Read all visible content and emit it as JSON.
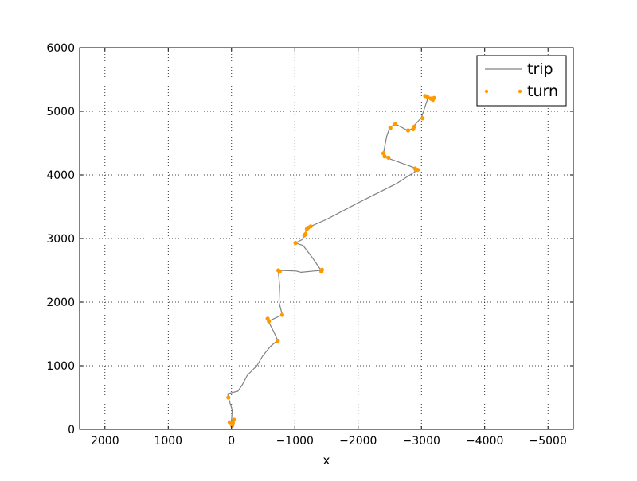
{
  "chart_data": {
    "type": "line",
    "xlabel": "x",
    "ylabel": "",
    "title": "",
    "xlim": [
      2400,
      -5400
    ],
    "ylim": [
      0,
      6000
    ],
    "xticks": [
      2000,
      1000,
      0,
      -1000,
      -2000,
      -3000,
      -4000,
      -5000
    ],
    "yticks": [
      0,
      1000,
      2000,
      3000,
      4000,
      5000,
      6000
    ],
    "xtick_labels": [
      "2000",
      "1000",
      "0",
      "−1000",
      "−2000",
      "−3000",
      "−4000",
      "−5000"
    ],
    "ytick_labels": [
      "0",
      "1000",
      "2000",
      "3000",
      "4000",
      "5000",
      "6000"
    ],
    "grid": true,
    "legend_position": "top-right",
    "series": [
      {
        "name": "trip",
        "style": "line",
        "color": "#808080",
        "points": [
          [
            0,
            50
          ],
          [
            -30,
            120
          ],
          [
            0,
            150
          ],
          [
            -10,
            300
          ],
          [
            50,
            500
          ],
          [
            60,
            560
          ],
          [
            -100,
            600
          ],
          [
            -170,
            700
          ],
          [
            -250,
            850
          ],
          [
            -400,
            1000
          ],
          [
            -490,
            1150
          ],
          [
            -610,
            1300
          ],
          [
            -730,
            1400
          ],
          [
            -660,
            1550
          ],
          [
            -580,
            1700
          ],
          [
            -650,
            1730
          ],
          [
            -800,
            1800
          ],
          [
            -750,
            2000
          ],
          [
            -760,
            2250
          ],
          [
            -740,
            2480
          ],
          [
            -760,
            2500
          ],
          [
            -1020,
            2490
          ],
          [
            -1100,
            2470
          ],
          [
            -1300,
            2490
          ],
          [
            -1430,
            2500
          ],
          [
            -1400,
            2520
          ],
          [
            -1270,
            2710
          ],
          [
            -1130,
            2890
          ],
          [
            -1010,
            2930
          ],
          [
            -1110,
            2980
          ],
          [
            -1160,
            3050
          ],
          [
            -1180,
            3150
          ],
          [
            -1250,
            3190
          ],
          [
            -1500,
            3300
          ],
          [
            -2000,
            3560
          ],
          [
            -2600,
            3860
          ],
          [
            -2900,
            4050
          ],
          [
            -2870,
            4120
          ],
          [
            -2420,
            4280
          ],
          [
            -2400,
            4330
          ],
          [
            -2450,
            4600
          ],
          [
            -2500,
            4750
          ],
          [
            -2590,
            4800
          ],
          [
            -2780,
            4700
          ],
          [
            -2870,
            4730
          ],
          [
            -2880,
            4770
          ],
          [
            -3000,
            4900
          ],
          [
            -3100,
            5200
          ],
          [
            -3040,
            5240
          ],
          [
            -3200,
            5200
          ]
        ]
      },
      {
        "name": "turn",
        "style": "markers",
        "color": "#ff9900",
        "points": [
          [
            -10,
            60
          ],
          [
            -20,
            100
          ],
          [
            30,
            110
          ],
          [
            -40,
            150
          ],
          [
            50,
            500
          ],
          [
            -730,
            1390
          ],
          [
            -590,
            1700
          ],
          [
            -570,
            1740
          ],
          [
            -800,
            1800
          ],
          [
            -760,
            2480
          ],
          [
            -740,
            2500
          ],
          [
            -1420,
            2480
          ],
          [
            -1430,
            2510
          ],
          [
            -1010,
            2930
          ],
          [
            -1150,
            3050
          ],
          [
            -1170,
            3070
          ],
          [
            -1190,
            3150
          ],
          [
            -1210,
            3170
          ],
          [
            -1250,
            3190
          ],
          [
            -2900,
            4100
          ],
          [
            -2940,
            4080
          ],
          [
            -2420,
            4290
          ],
          [
            -2400,
            4340
          ],
          [
            -2480,
            4270
          ],
          [
            -2510,
            4740
          ],
          [
            -2590,
            4800
          ],
          [
            -2790,
            4700
          ],
          [
            -2870,
            4720
          ],
          [
            -2890,
            4760
          ],
          [
            -3020,
            4890
          ],
          [
            -3060,
            5240
          ],
          [
            -3100,
            5220
          ],
          [
            -3150,
            5200
          ],
          [
            -3200,
            5210
          ],
          [
            -3180,
            5180
          ]
        ]
      }
    ]
  }
}
